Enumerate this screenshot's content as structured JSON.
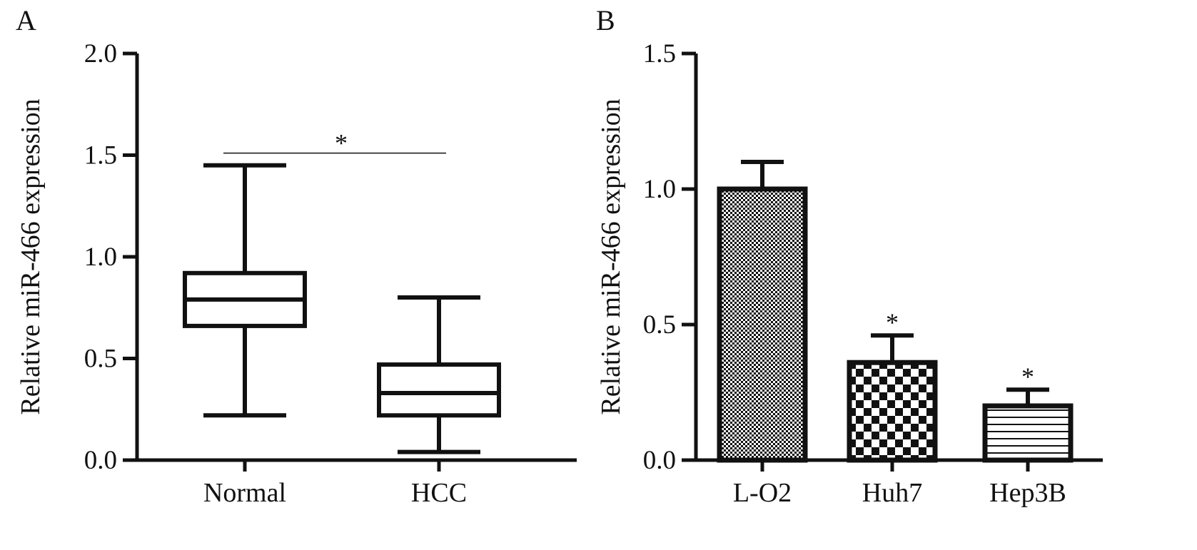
{
  "chart_data": [
    {
      "panel": "A",
      "type": "boxplot",
      "ylabel": "Relative miR-466 expression",
      "ylim": [
        0,
        2.0
      ],
      "yticks": [
        "0.0",
        "0.5",
        "1.0",
        "1.5",
        "2.0"
      ],
      "categories": [
        "Normal",
        "HCC"
      ],
      "boxes": [
        {
          "name": "Normal",
          "min": 0.22,
          "q1": 0.66,
          "median": 0.79,
          "q3": 0.92,
          "max": 1.45
        },
        {
          "name": "HCC",
          "min": 0.04,
          "q1": 0.22,
          "median": 0.33,
          "q3": 0.47,
          "max": 0.8
        }
      ],
      "significance": {
        "label": "*",
        "level": 1.51,
        "between": [
          "Normal",
          "HCC"
        ]
      }
    },
    {
      "panel": "B",
      "type": "bar",
      "ylabel": "Relative miR-466 expression",
      "ylim": [
        0,
        1.5
      ],
      "yticks": [
        "0.0",
        "0.5",
        "1.0",
        "1.5"
      ],
      "categories": [
        "L-O2",
        "Huh7",
        "Hep3B"
      ],
      "values": [
        1.0,
        0.36,
        0.2
      ],
      "errors": [
        0.1,
        0.1,
        0.06
      ],
      "patterns": [
        "dots",
        "checker",
        "hstripes"
      ],
      "significance": [
        "",
        "*",
        "*"
      ]
    }
  ],
  "colors": {
    "ink": "#111111",
    "background": "#ffffff"
  }
}
